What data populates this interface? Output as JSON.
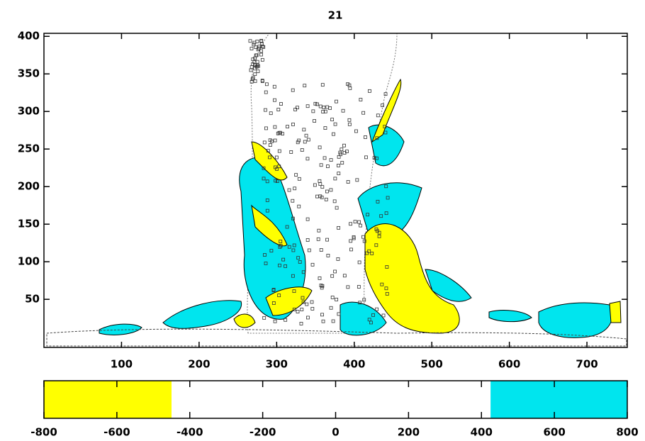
{
  "chart_data": {
    "type": "contour",
    "title": "21",
    "xlim": [
      0,
      752
    ],
    "xticks": [
      100,
      200,
      300,
      400,
      500,
      600,
      700
    ],
    "ylim": [
      -14,
      404
    ],
    "yticks": [
      50,
      100,
      150,
      200,
      250,
      300,
      350,
      400
    ],
    "colorbar": {
      "lim": [
        -800,
        800
      ],
      "ticks": [
        -800,
        -600,
        -400,
        -200,
        0,
        200,
        400,
        600,
        800
      ],
      "segments": [
        {
          "from": -800,
          "to": -450,
          "color": "#ffff00"
        },
        {
          "from": -450,
          "to": 425,
          "color": "#ffffff"
        },
        {
          "from": 425,
          "to": 800,
          "color": "#00e5ee"
        }
      ]
    }
  }
}
